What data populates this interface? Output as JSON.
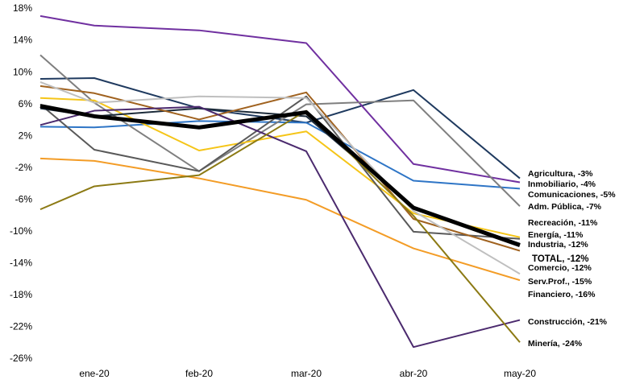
{
  "chart_data": {
    "type": "line",
    "categories": [
      null,
      "ene-20",
      "feb-20",
      "mar-20",
      "abr-20",
      "may-20"
    ],
    "ylim": [
      -26,
      18
    ],
    "yticks": [
      {
        "value": 18,
        "label": "18%"
      },
      {
        "value": 14,
        "label": "14%"
      },
      {
        "value": 10,
        "label": "10%"
      },
      {
        "value": 6,
        "label": "6%"
      },
      {
        "value": 2,
        "label": "2%"
      },
      {
        "value": -2,
        "label": "-2%"
      },
      {
        "value": -6,
        "label": "-6%"
      },
      {
        "value": -10,
        "label": "-10%"
      },
      {
        "value": -14,
        "label": "-14%"
      },
      {
        "value": -18,
        "label": "-18%"
      },
      {
        "value": -22,
        "label": "-22%"
      },
      {
        "value": -26,
        "label": "-26%"
      }
    ],
    "series": [
      {
        "name": "Agricultura, -3%",
        "color": "#1f3a5f",
        "values": [
          9.2,
          9.3,
          5.5,
          3.7,
          7.8,
          -3.3
        ]
      },
      {
        "name": "Inmobiliario, -4%",
        "color": "#7030a0",
        "values": [
          17.1,
          15.9,
          15.3,
          13.7,
          -1.5,
          -3.8
        ]
      },
      {
        "name": "Comunicaciones, -5%",
        "color": "#2e75c6",
        "values": [
          3.2,
          3.1,
          3.9,
          3.7,
          -3.6,
          -4.6
        ]
      },
      {
        "name": "Adm. Pública, -7%",
        "color": "#7f7f7f",
        "values": [
          12.2,
          6.2,
          -2.4,
          6.0,
          6.5,
          -6.8
        ]
      },
      {
        "name": "Recreación, -11%",
        "color": "#f5c518",
        "values": [
          6.8,
          6.5,
          0.2,
          2.6,
          -7.7,
          -10.7
        ]
      },
      {
        "name": "Energía, -11%",
        "color": "#595959",
        "values": [
          6.0,
          0.3,
          -2.4,
          7.0,
          -10.0,
          -10.9
        ]
      },
      {
        "name": "Industria, -12%",
        "color": "#1c2b3a",
        "values": [
          5.5,
          4.5,
          5.5,
          4.5,
          -7.0,
          -11.5
        ]
      },
      {
        "name": "TOTAL, -12%",
        "color": "#000000",
        "values": [
          5.8,
          4.5,
          3.1,
          5.0,
          -7.0,
          -11.7
        ]
      },
      {
        "name": "Comercio, -12%",
        "color": "#a0621f",
        "values": [
          8.3,
          7.4,
          4.1,
          7.5,
          -8.4,
          -12.4
        ]
      },
      {
        "name": "Serv.Prof., -15%",
        "color": "#bfbfbf",
        "values": [
          8.8,
          6.2,
          7.0,
          6.8,
          -7.4,
          -15.3
        ]
      },
      {
        "name": "Financiero, -16%",
        "color": "#f39c26",
        "values": [
          -0.8,
          -1.1,
          -3.3,
          -6.0,
          -12.1,
          -16.1
        ]
      },
      {
        "name": "Construcción, -21%",
        "color": "#4b2a6e",
        "values": [
          3.4,
          5.2,
          5.7,
          0.1,
          -24.5,
          -21.1
        ]
      },
      {
        "name": "Minería, -24%",
        "color": "#8c7a14",
        "values": [
          -7.2,
          -4.3,
          -2.9,
          5.2,
          -8.0,
          -23.9
        ]
      }
    ]
  }
}
